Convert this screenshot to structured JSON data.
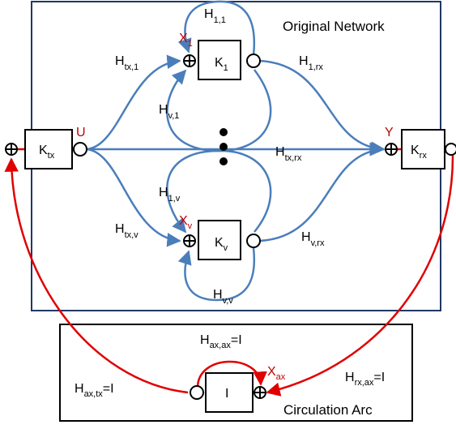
{
  "colors": {
    "network_border": "#1f3864",
    "blue_edge": "#4a7ebb",
    "red_edge": "#e00000",
    "signal_label": "#c00000",
    "box_stroke": "#000000"
  },
  "regions": {
    "network_title": "Original Network",
    "circulation_title": "Circulation Arc"
  },
  "blocks": {
    "k_tx": {
      "main": "K",
      "sub": "tx"
    },
    "k_1": {
      "main": "K",
      "sub": "1"
    },
    "k_v": {
      "main": "K",
      "sub": "v"
    },
    "k_rx": {
      "main": "K",
      "sub": "rx"
    },
    "identity": {
      "main": "I"
    }
  },
  "signals": {
    "u": "U",
    "y": "Y",
    "x_1": {
      "main": "X",
      "sub": "1"
    },
    "x_v": {
      "main": "X",
      "sub": "v"
    },
    "x_ax": {
      "main": "X",
      "sub": "ax"
    }
  },
  "edges": {
    "h_11": {
      "main": "H",
      "sub": "1,1"
    },
    "h_tx1": {
      "main": "H",
      "sub": "tx,1"
    },
    "h_1rx": {
      "main": "H",
      "sub": "1,rx"
    },
    "h_v1": {
      "main": "H",
      "sub": "v,1"
    },
    "h_txrx": {
      "main": "H",
      "sub": "tx,rx"
    },
    "h_1v": {
      "main": "H",
      "sub": "1,v"
    },
    "h_txv": {
      "main": "H",
      "sub": "tx,v"
    },
    "h_vrx": {
      "main": "H",
      "sub": "v,rx"
    },
    "h_vv": {
      "main": "H",
      "sub": "v,v"
    },
    "h_axax": {
      "main": "H",
      "sub": "ax,ax",
      "suffix": "=I"
    },
    "h_axtx": {
      "main": "H",
      "sub": "ax,tx",
      "suffix": "=I"
    },
    "h_rxax": {
      "main": "H",
      "sub": "rx,ax",
      "suffix": "=I"
    }
  },
  "icons": [
    "summing-junction-icon",
    "pickoff-node-icon",
    "ellipsis-dots-icon"
  ]
}
